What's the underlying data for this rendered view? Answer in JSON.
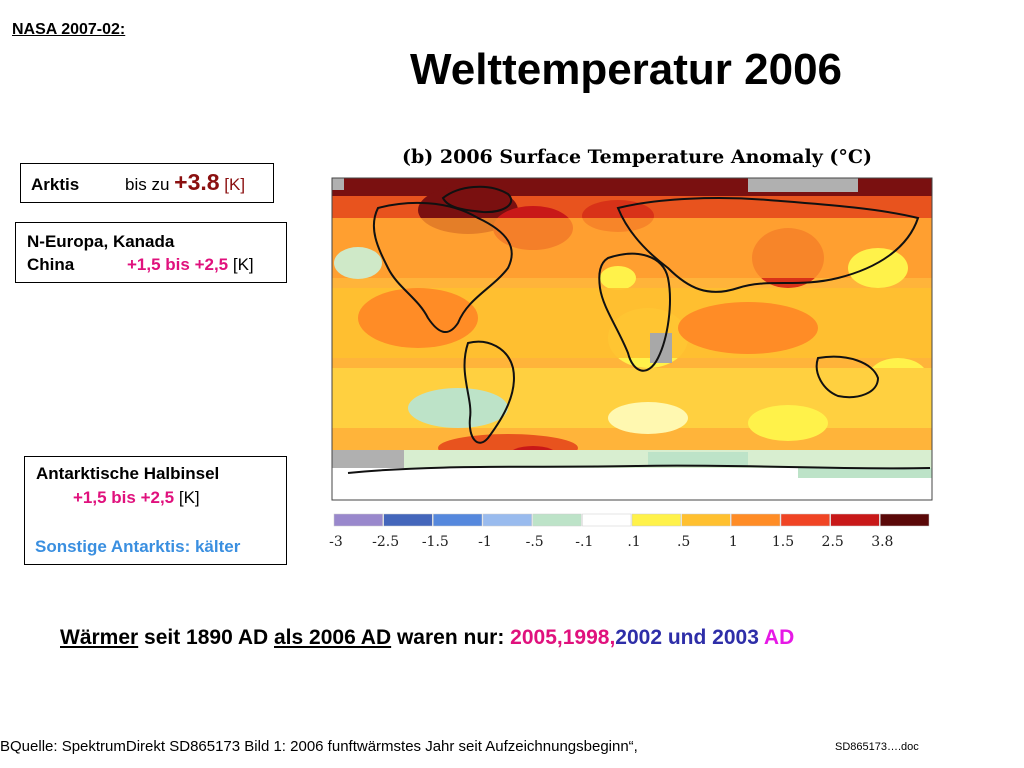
{
  "header": {
    "label": "NASA 2007-02: "
  },
  "title": "Welttemperatur 2006",
  "boxes": {
    "arktis": {
      "label": "Arktis",
      "prefix": "bis zu ",
      "value": "+3.8",
      "unit": " [K]"
    },
    "europa": {
      "line1": "N-Europa, Kanada",
      "line2": "China",
      "value": "+1,5 bis +2,5",
      "unit": " [K]"
    },
    "antarktis": {
      "line1": "Antarktische Halbinsel",
      "value": "+1,5 bis +2,5",
      "unit": " [K]",
      "other": "Sonstige Antarktis: kälter"
    }
  },
  "figure": {
    "title": "(b)  2006 Surface Temperature Anomaly (°C)",
    "scale_ticks": [
      "-3",
      "-2.5",
      "-1.5",
      "-1",
      "-.5",
      "-.1",
      ".1",
      ".5",
      "1",
      "1.5",
      "2.5",
      "3.8"
    ],
    "scale_colors": [
      "#9988cc",
      "#4466bb",
      "#5588dd",
      "#99bbee",
      "#bde3c8",
      "#ffffff",
      "#fff24a",
      "#ffc030",
      "#ff8c26",
      "#f04424",
      "#c81818",
      "#5a0808"
    ]
  },
  "summary": {
    "w1": "Wärmer",
    "w2": " seit 1890 AD ",
    "w3": "als 2006 AD",
    "w4": "  waren nur: ",
    "years_pink": "2005,1998,",
    "years_blue": "2002 und 2003 ",
    "ad": "AD"
  },
  "footer": {
    "source": "BQuelle: SpektrumDirekt SD865173 Bild 1: 2006 funftwärmstes Jahr seit Aufzeichnungsbeginn“,",
    "doc": "SD865173….doc"
  }
}
